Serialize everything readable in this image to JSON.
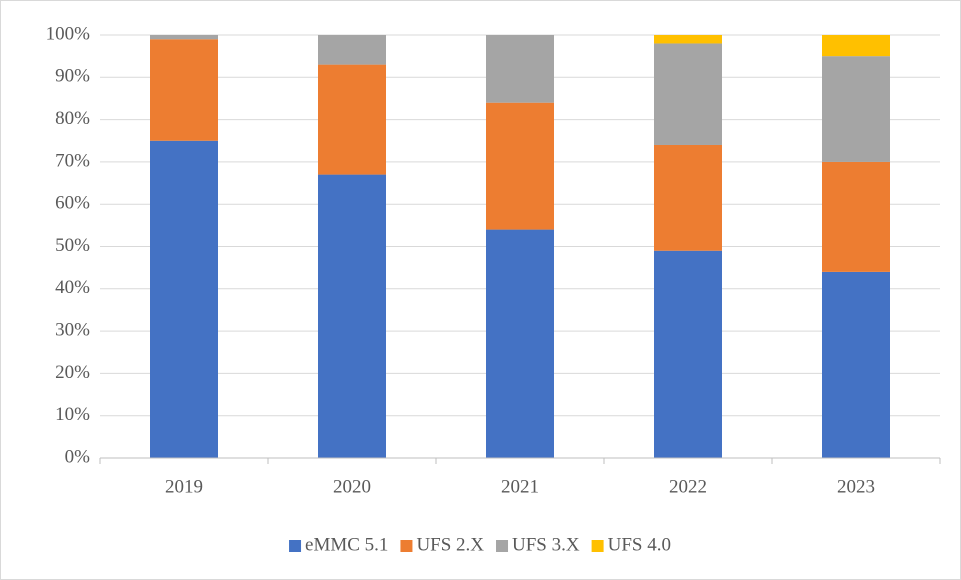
{
  "chart_data": {
    "type": "stacked_bar",
    "categories": [
      "2019",
      "2020",
      "2021",
      "2022",
      "2023"
    ],
    "series": [
      {
        "name": "eMMC 5.1",
        "color": "#4472c4",
        "values": [
          75,
          67,
          54,
          49,
          44
        ]
      },
      {
        "name": "UFS 2.X",
        "color": "#ed7d31",
        "values": [
          24,
          26,
          30,
          25,
          26
        ]
      },
      {
        "name": "UFS 3.X",
        "color": "#a5a5a5",
        "values": [
          1,
          7,
          16,
          24,
          25
        ]
      },
      {
        "name": "UFS 4.0",
        "color": "#ffc000",
        "values": [
          0,
          0,
          0,
          2,
          5
        ]
      }
    ],
    "ylim": [
      0,
      100
    ],
    "yticks": [
      {
        "value": 0,
        "label": "0%"
      },
      {
        "value": 10,
        "label": "10%"
      },
      {
        "value": 20,
        "label": "20%"
      },
      {
        "value": 30,
        "label": "30%"
      },
      {
        "value": 40,
        "label": "40%"
      },
      {
        "value": 50,
        "label": "50%"
      },
      {
        "value": 60,
        "label": "60%"
      },
      {
        "value": 70,
        "label": "70%"
      },
      {
        "value": 80,
        "label": "80%"
      },
      {
        "value": 90,
        "label": "90%"
      },
      {
        "value": 100,
        "label": "100%"
      }
    ],
    "grid": true,
    "legend": "bottom"
  }
}
